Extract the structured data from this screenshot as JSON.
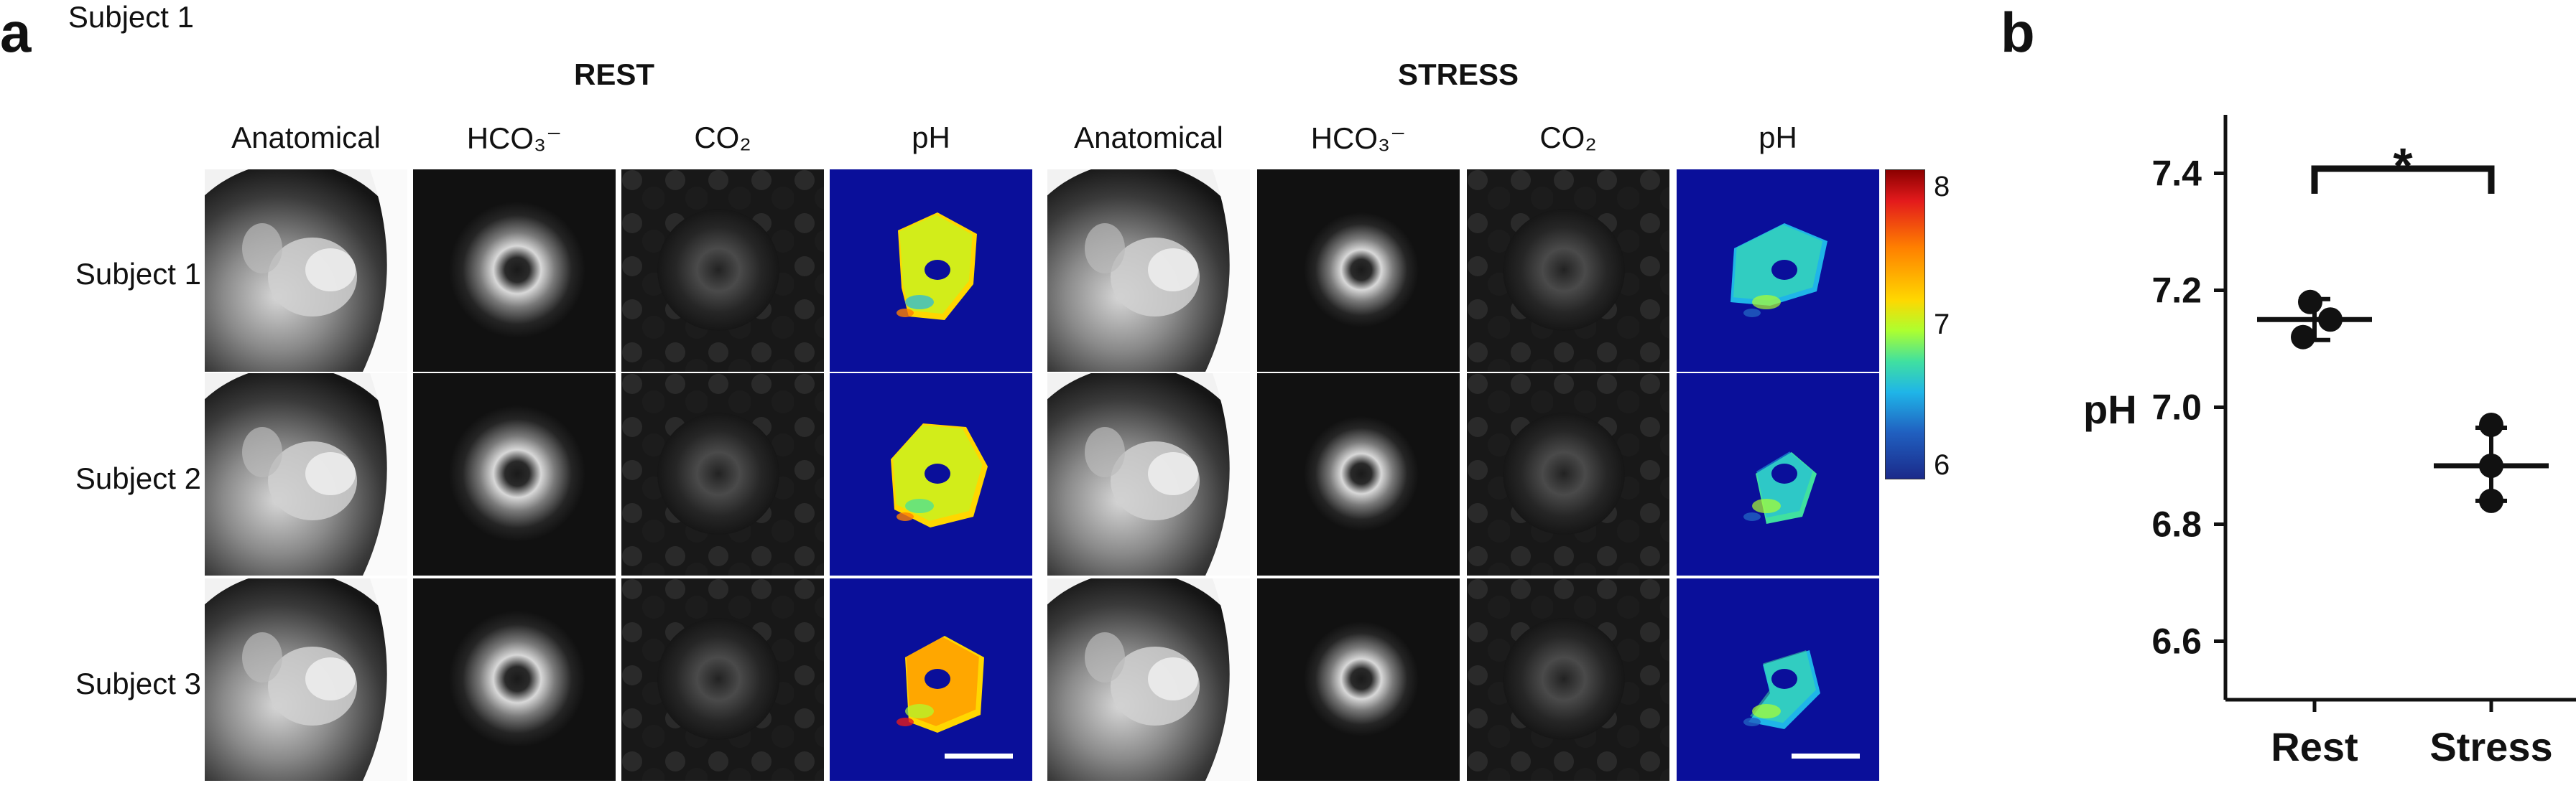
{
  "panel_a": {
    "label": "a",
    "conditions": [
      "REST",
      "STRESS"
    ],
    "columns": [
      "Anatomical",
      "HCO₃⁻",
      "CO₂",
      "pH"
    ],
    "rows": [
      "Subject 1",
      "Subject 2",
      "Subject 3"
    ],
    "colorbar": {
      "ticks": [
        "8",
        "7",
        "6"
      ],
      "min": 6,
      "max": 8.2
    },
    "colors": {
      "ph_background": "#0a0f9a"
    }
  },
  "panel_b": {
    "label": "b",
    "significance": "*"
  },
  "chart_data": {
    "type": "scatter",
    "ylabel": "pH",
    "xlabel": "",
    "categories": [
      "Rest",
      "Stress"
    ],
    "ylim": [
      6.5,
      7.5
    ],
    "yticks": [
      "6.6",
      "6.8",
      "7.0",
      "7.2",
      "7.4"
    ],
    "series": [
      {
        "values": [
          [
            7.18,
            7.15,
            7.12
          ],
          [
            6.97,
            6.9,
            6.84
          ]
        ]
      }
    ],
    "means": [
      7.15,
      6.9
    ],
    "sd_bars": [
      [
        7.115,
        7.185
      ],
      [
        6.84,
        6.965
      ]
    ],
    "annotation": "*"
  }
}
